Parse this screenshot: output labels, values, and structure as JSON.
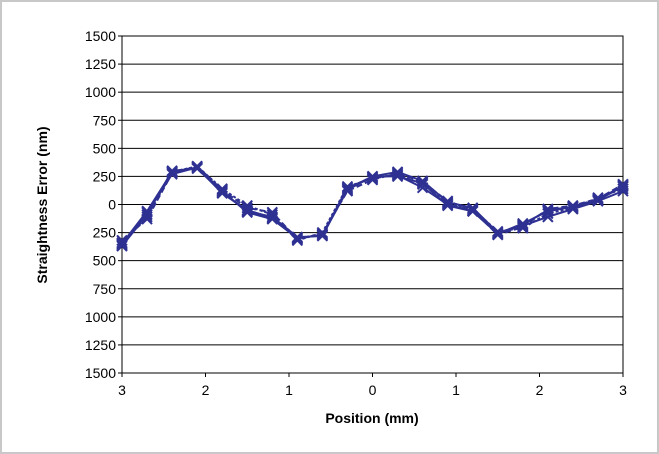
{
  "chart_data": {
    "type": "line",
    "title": "",
    "xlabel": "Position (mm)",
    "ylabel": "Straightness Error (nm)",
    "x_tick_labels": [
      "3",
      "2",
      "1",
      "0",
      "1",
      "2",
      "3"
    ],
    "y_tick_labels": [
      "1500",
      "1250",
      "1000",
      "750",
      "500",
      "250",
      "0",
      "250",
      "500",
      "750",
      "1000",
      "1250",
      "1500"
    ],
    "xlim": [
      -3,
      3
    ],
    "ylim": [
      -1500,
      1500
    ],
    "grid": "horizontal",
    "legend": "none",
    "series_color": "#2e3192",
    "marker": "x",
    "x": [
      -3.0,
      -2.7,
      -2.4,
      -2.1,
      -1.8,
      -1.5,
      -1.2,
      -0.9,
      -0.6,
      -0.3,
      0.0,
      0.3,
      0.6,
      0.9,
      1.2,
      1.5,
      1.8,
      2.1,
      2.4,
      2.7,
      3.0
    ],
    "series": [
      {
        "values": [
          -350,
          -60,
          290,
          330,
          120,
          -70,
          -130,
          -300,
          -270,
          150,
          240,
          260,
          150,
          0,
          -60,
          -260,
          -170,
          -60,
          -20,
          40,
          160
        ]
      },
      {
        "values": [
          -320,
          -130,
          280,
          340,
          130,
          -30,
          -70,
          -310,
          -260,
          120,
          220,
          280,
          200,
          30,
          -50,
          -270,
          -200,
          -40,
          -10,
          50,
          180
        ]
      },
      {
        "values": [
          -370,
          -90,
          300,
          320,
          110,
          -60,
          -110,
          -290,
          -280,
          140,
          250,
          290,
          210,
          20,
          -30,
          -250,
          -190,
          -110,
          -40,
          30,
          120
        ]
      },
      {
        "values": [
          -340,
          -110,
          290,
          340,
          140,
          -10,
          -90,
          -320,
          -250,
          160,
          230,
          270,
          180,
          10,
          -40,
          -240,
          -210,
          -80,
          -30,
          60,
          140
        ]
      },
      {
        "values": [
          -360,
          -70,
          270,
          330,
          100,
          -50,
          -120,
          -300,
          -270,
          130,
          250,
          250,
          190,
          -10,
          -60,
          -260,
          -180,
          -50,
          -20,
          40,
          170
        ]
      }
    ]
  }
}
